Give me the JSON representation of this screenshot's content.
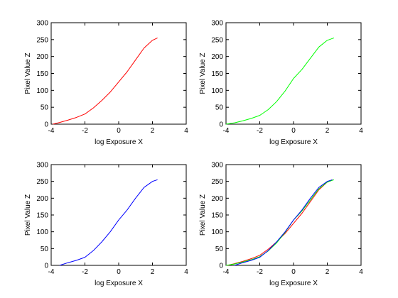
{
  "chart_data": [
    {
      "type": "line",
      "title": "",
      "xlabel": "log Exposure X",
      "ylabel": "Pixel Value Z",
      "xlim": [
        -4,
        4
      ],
      "ylim": [
        0,
        300
      ],
      "xticks": [
        "-4",
        "-2",
        "0",
        "2",
        "4"
      ],
      "yticks": [
        "0",
        "50",
        "100",
        "150",
        "200",
        "250",
        "300"
      ],
      "grid": false,
      "series": [
        {
          "color": "#ff0000",
          "x": [
            -3.9,
            -3.5,
            -3.0,
            -2.5,
            -2.0,
            -1.5,
            -1.0,
            -0.5,
            0.0,
            0.5,
            1.0,
            1.5,
            2.0,
            2.3
          ],
          "y": [
            0,
            5,
            12,
            20,
            30,
            48,
            70,
            95,
            125,
            155,
            190,
            225,
            248,
            255
          ]
        }
      ]
    },
    {
      "type": "line",
      "title": "",
      "xlabel": "log Exposure X",
      "ylabel": "Pixel Value Z",
      "xlim": [
        -4,
        4
      ],
      "ylim": [
        0,
        300
      ],
      "xticks": [
        "-4",
        "-2",
        "0",
        "2",
        "4"
      ],
      "yticks": [
        "0",
        "50",
        "100",
        "150",
        "200",
        "250",
        "300"
      ],
      "grid": false,
      "series": [
        {
          "color": "#00ff00",
          "x": [
            -4.0,
            -3.5,
            -3.0,
            -2.5,
            -2.0,
            -1.5,
            -1.0,
            -0.5,
            0.0,
            0.5,
            1.0,
            1.5,
            2.0,
            2.4
          ],
          "y": [
            0,
            4,
            10,
            17,
            26,
            43,
            67,
            98,
            135,
            162,
            195,
            228,
            248,
            255
          ]
        }
      ]
    },
    {
      "type": "line",
      "title": "",
      "xlabel": "log Exposure X",
      "ylabel": "Pixel Value Z",
      "xlim": [
        -4,
        4
      ],
      "ylim": [
        0,
        300
      ],
      "xticks": [
        "-4",
        "-2",
        "0",
        "2",
        "4"
      ],
      "yticks": [
        "0",
        "50",
        "100",
        "150",
        "200",
        "250",
        "300"
      ],
      "grid": false,
      "series": [
        {
          "color": "#0000ff",
          "x": [
            -3.5,
            -3.0,
            -2.5,
            -2.0,
            -1.5,
            -1.0,
            -0.5,
            0.0,
            0.5,
            1.0,
            1.5,
            2.0,
            2.3
          ],
          "y": [
            0,
            8,
            15,
            24,
            44,
            70,
            100,
            135,
            165,
            200,
            232,
            250,
            255
          ]
        }
      ]
    },
    {
      "type": "line",
      "title": "",
      "xlabel": "log Exposure X",
      "ylabel": "Pixel Value Z",
      "xlim": [
        -4,
        4
      ],
      "ylim": [
        0,
        300
      ],
      "xticks": [
        "-4",
        "-2",
        "0",
        "2",
        "4"
      ],
      "yticks": [
        "0",
        "50",
        "100",
        "150",
        "200",
        "250",
        "300"
      ],
      "grid": false,
      "series": [
        {
          "color": "#ff0000",
          "x": [
            -3.9,
            -3.5,
            -3.0,
            -2.5,
            -2.0,
            -1.5,
            -1.0,
            -0.5,
            0.0,
            0.5,
            1.0,
            1.5,
            2.0,
            2.3
          ],
          "y": [
            0,
            5,
            12,
            20,
            30,
            48,
            70,
            95,
            125,
            155,
            190,
            225,
            248,
            255
          ]
        },
        {
          "color": "#00ff00",
          "x": [
            -4.0,
            -3.5,
            -3.0,
            -2.5,
            -2.0,
            -1.5,
            -1.0,
            -0.5,
            0.0,
            0.5,
            1.0,
            1.5,
            2.0,
            2.4
          ],
          "y": [
            0,
            4,
            10,
            17,
            26,
            43,
            67,
            98,
            135,
            162,
            195,
            228,
            248,
            255
          ]
        },
        {
          "color": "#0000ff",
          "x": [
            -3.5,
            -3.0,
            -2.5,
            -2.0,
            -1.5,
            -1.0,
            -0.5,
            0.0,
            0.5,
            1.0,
            1.5,
            2.0,
            2.3
          ],
          "y": [
            0,
            8,
            15,
            24,
            44,
            70,
            100,
            135,
            165,
            200,
            232,
            250,
            255
          ]
        }
      ]
    }
  ]
}
